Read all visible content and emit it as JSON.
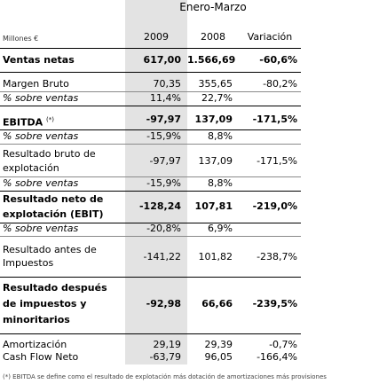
{
  "table": {
    "period_header": "Enero-Marzo",
    "units_label": "Millones €",
    "columns": [
      "2009",
      "2008",
      "Variación"
    ],
    "rows": [
      {
        "label": "Ventas netas",
        "values": [
          "617,00",
          "1.566,69",
          "-60,6%"
        ]
      },
      {
        "label": "Margen Bruto",
        "values": [
          "70,35",
          "355,65",
          "-80,2%"
        ]
      },
      {
        "label": "% sobre ventas",
        "values": [
          "11,4%",
          "22,7%",
          ""
        ]
      },
      {
        "label": "EBITDA",
        "note_mark": "(*)",
        "values": [
          "-97,97",
          "137,09",
          "-171,5%"
        ]
      },
      {
        "label": "% sobre ventas",
        "values": [
          "-15,9%",
          "8,8%",
          ""
        ]
      },
      {
        "label_lines": [
          "Resultado bruto de",
          "explotación"
        ],
        "values": [
          "-97,97",
          "137,09",
          "-171,5%"
        ]
      },
      {
        "label": "% sobre ventas",
        "values": [
          "-15,9%",
          "8,8%",
          ""
        ]
      },
      {
        "label_lines": [
          "Resultado neto de",
          "explotación (EBIT)"
        ],
        "values": [
          "-128,24",
          "107,81",
          "-219,0%"
        ]
      },
      {
        "label": "% sobre ventas",
        "values": [
          "-20,8%",
          "6,9%",
          ""
        ]
      },
      {
        "label_lines": [
          "Resultado antes de",
          "Impuestos"
        ],
        "values": [
          "-141,22",
          "101,82",
          "-238,7%"
        ]
      },
      {
        "label_lines": [
          "Resultado después",
          "de impuestos y",
          "minoritarios"
        ],
        "values": [
          "-92,98",
          "66,66",
          "-239,5%"
        ]
      },
      {
        "label": "Amortización",
        "values": [
          "29,19",
          "29,39",
          "-0,7%"
        ]
      },
      {
        "label": "Cash Flow Neto",
        "values": [
          "-63,79",
          "96,05",
          "-166,4%"
        ]
      }
    ],
    "footnote": "(*) EBITDA se define como el resultado de explotación más dotación de amortizaciones más provisiones"
  }
}
